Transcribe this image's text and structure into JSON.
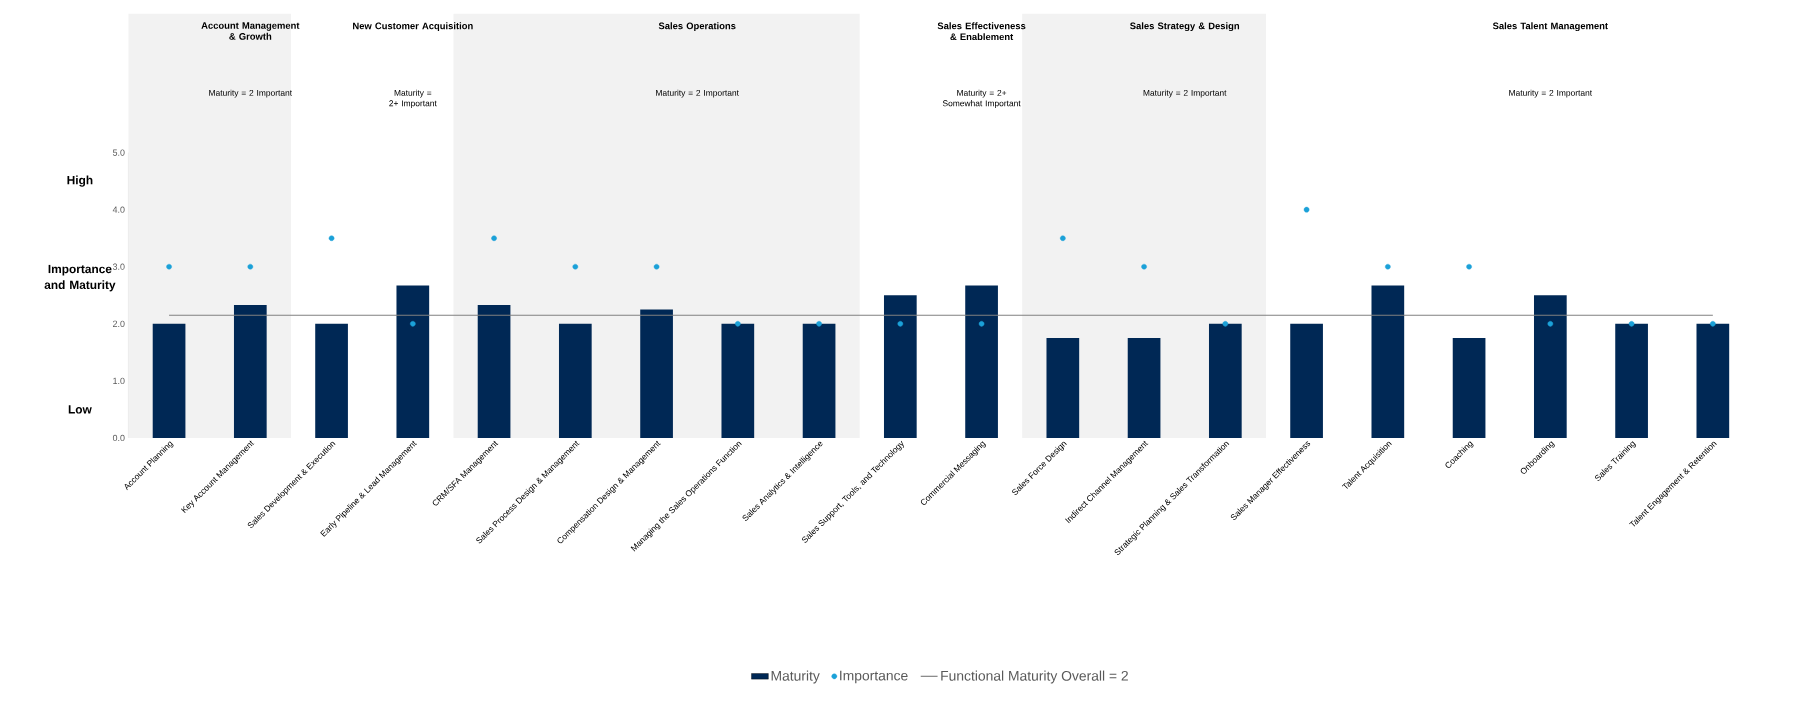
{
  "chart_data": {
    "type": "bar",
    "ylabel": "Importance and Maturity",
    "categories": [
      "Account Planning",
      "Key Account Management",
      "Sales Development & Execution",
      "Early Pipeline & Lead Management",
      "CRM/SFA Management",
      "Sales Process Design & Management",
      "Compensation Design & Management",
      "Managing the Sales Operations Function",
      "Sales Analytics & Intelligence",
      "Sales Support, Tools, and Technology",
      "Commercial Messaging",
      "Sales Force Design",
      "Indirect Channel Management",
      "Strategic Planning & Sales Transformation",
      "Sales Manager Effectiveness",
      "Talent Acquisition",
      "Coaching",
      "Onboarding",
      "Sales Training",
      "Talent Engagement & Retention"
    ],
    "series": [
      {
        "name": "Maturity",
        "color": "#002855",
        "values": [
          2.0,
          2.33,
          2.0,
          2.67,
          2.33,
          2.0,
          2.25,
          2.0,
          2.0,
          2.5,
          2.67,
          1.75,
          1.75,
          2.0,
          2.0,
          2.67,
          1.75,
          2.5,
          2.0,
          2.0
        ]
      },
      {
        "name": "Importance",
        "type": "scatter",
        "color": "#1ba1d8",
        "marker": "circle",
        "values": [
          3.0,
          3.0,
          3.5,
          2.0,
          3.5,
          3.0,
          3.0,
          2.0,
          2.0,
          2.0,
          2.0,
          3.5,
          3.0,
          2.0,
          4.0,
          3.0,
          3.0,
          2.0,
          2.0,
          2.0
        ]
      }
    ],
    "ylim": [
      0,
      5
    ],
    "yticks": [
      {
        "value": 0,
        "label": "0.0"
      },
      {
        "value": 1,
        "label": "1.0"
      },
      {
        "value": 2,
        "label": "2.0"
      },
      {
        "value": 3,
        "label": "3.0"
      },
      {
        "value": 4,
        "label": "4.0"
      },
      {
        "value": 5,
        "label": "5.0"
      }
    ],
    "ref_lines": [
      {
        "axis": "y",
        "value": 2.15,
        "label": "Functional Maturity Overall = 2",
        "color": "#808080"
      }
    ],
    "bands": [
      {
        "axis": "x",
        "from": "Account Planning",
        "to": "Key Account Management",
        "label": "Account Management & Growth",
        "color": "#f2f2f2"
      },
      {
        "axis": "x",
        "from": "CRM/SFA Management",
        "to": "Sales Analytics & Intelligence",
        "label": "Sales Operations",
        "color": "#f2f2f2"
      },
      {
        "axis": "x",
        "from": "Sales Force Design",
        "to": "Strategic Planning & Sales Transformation",
        "label": "Sales Strategy & Design",
        "color": "#f2f2f2"
      }
    ],
    "annotations": [
      "New Customer Acquisition",
      "Sales Effectiveness & Enablement",
      "Sales Talent Management",
      "Maturity = 2 Important",
      "Maturity = 2+ Important",
      "Maturity = 2 Important",
      "Maturity = 2+ Somewhat Important",
      "Maturity = 2 Important",
      "Maturity = 2 Important",
      "High",
      "Low"
    ],
    "legend": "bottom",
    "grid": false
  }
}
